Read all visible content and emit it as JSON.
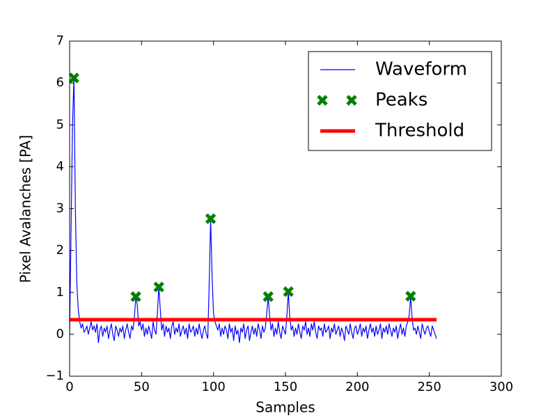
{
  "chart_data": {
    "type": "line",
    "xlabel": "Samples",
    "ylabel": "Pixel Avalanches [PA]",
    "xlim": [
      0,
      300
    ],
    "xticks": [
      0,
      50,
      100,
      150,
      200,
      250,
      300
    ],
    "ylim": [
      -1,
      7
    ],
    "yticks": [
      {
        "value": -1,
        "label": "−1"
      },
      0,
      1,
      2,
      3,
      4,
      5,
      6,
      7
    ],
    "legend": "upper right",
    "series": [
      {
        "name": "Waveform",
        "color": "#0000ff",
        "style": "line",
        "x": [
          0,
          1,
          2,
          3,
          4,
          5,
          6,
          7,
          8,
          9,
          10,
          11,
          12,
          13,
          14,
          15,
          16,
          17,
          18,
          19,
          20,
          21,
          22,
          23,
          24,
          25,
          26,
          27,
          28,
          29,
          30,
          31,
          32,
          33,
          34,
          35,
          36,
          37,
          38,
          39,
          40,
          41,
          42,
          43,
          44,
          45,
          46,
          47,
          48,
          49,
          50,
          51,
          52,
          53,
          54,
          55,
          56,
          57,
          58,
          59,
          60,
          61,
          62,
          63,
          64,
          65,
          66,
          67,
          68,
          69,
          70,
          71,
          72,
          73,
          74,
          75,
          76,
          77,
          78,
          79,
          80,
          81,
          82,
          83,
          84,
          85,
          86,
          87,
          88,
          89,
          90,
          91,
          92,
          93,
          94,
          95,
          96,
          97,
          98,
          99,
          100,
          101,
          102,
          103,
          104,
          105,
          106,
          107,
          108,
          109,
          110,
          111,
          112,
          113,
          114,
          115,
          116,
          117,
          118,
          119,
          120,
          121,
          122,
          123,
          124,
          125,
          126,
          127,
          128,
          129,
          130,
          131,
          132,
          133,
          134,
          135,
          136,
          137,
          138,
          139,
          140,
          141,
          142,
          143,
          144,
          145,
          146,
          147,
          148,
          149,
          150,
          151,
          152,
          153,
          154,
          155,
          156,
          157,
          158,
          159,
          160,
          161,
          162,
          163,
          164,
          165,
          166,
          167,
          168,
          169,
          170,
          171,
          172,
          173,
          174,
          175,
          176,
          177,
          178,
          179,
          180,
          181,
          182,
          183,
          184,
          185,
          186,
          187,
          188,
          189,
          190,
          191,
          192,
          193,
          194,
          195,
          196,
          197,
          198,
          199,
          200,
          201,
          202,
          203,
          204,
          205,
          206,
          207,
          208,
          209,
          210,
          211,
          212,
          213,
          214,
          215,
          216,
          217,
          218,
          219,
          220,
          221,
          222,
          223,
          224,
          225,
          226,
          227,
          228,
          229,
          230,
          231,
          232,
          233,
          234,
          235,
          236,
          237,
          238,
          239,
          240,
          241,
          242,
          243,
          244,
          245,
          246,
          247,
          248,
          249,
          250,
          251,
          252,
          253,
          254,
          255
        ],
        "values": [
          0,
          2.5,
          5.0,
          6.12,
          3.0,
          1.2,
          0.6,
          0.3,
          0.15,
          0.25,
          0.05,
          0.1,
          0.2,
          0.0,
          0.15,
          0.3,
          0.1,
          0.2,
          0.05,
          0.25,
          -0.2,
          0.1,
          0.2,
          -0.05,
          0.15,
          0.05,
          0.2,
          -0.1,
          0.1,
          0.25,
          0.0,
          -0.15,
          0.2,
          0.1,
          -0.05,
          0.15,
          0.05,
          0.2,
          -0.1,
          0.1,
          0.25,
          0.05,
          -0.1,
          0.2,
          0.1,
          0.4,
          0.9,
          0.7,
          0.2,
          0.3,
          0.1,
          0.25,
          -0.05,
          0.15,
          0.0,
          0.2,
          0.05,
          -0.1,
          0.3,
          0.1,
          0.0,
          0.5,
          1.13,
          0.6,
          0.1,
          0.25,
          -0.05,
          0.2,
          0.05,
          0.15,
          -0.1,
          0.2,
          0.3,
          0.0,
          0.15,
          0.05,
          0.25,
          -0.05,
          0.1,
          0.2,
          0.0,
          0.15,
          -0.1,
          0.25,
          0.05,
          0.1,
          0.2,
          -0.05,
          0.15,
          0.0,
          0.25,
          0.05,
          -0.1,
          0.1,
          0.2,
          0.0,
          -0.1,
          1.2,
          2.76,
          1.4,
          0.5,
          0.3,
          0.2,
          0.1,
          0.25,
          -0.05,
          0.15,
          0.0,
          0.2,
          0.1,
          -0.1,
          0.25,
          0.05,
          0.15,
          -0.15,
          0.2,
          0.0,
          0.1,
          -0.2,
          0.15,
          0.05,
          0.25,
          -0.1,
          0.1,
          0.2,
          -0.15,
          0.05,
          0.2,
          0.0,
          0.15,
          -0.05,
          0.25,
          0.1,
          -0.1,
          0.2,
          0.05,
          0.15,
          0.5,
          0.9,
          0.45,
          0.1,
          0.25,
          -0.05,
          0.15,
          0.0,
          0.3,
          0.05,
          -0.1,
          0.2,
          0.1,
          0.0,
          0.45,
          1.02,
          0.4,
          0.1,
          0.2,
          -0.05,
          0.15,
          0.0,
          0.25,
          0.05,
          -0.1,
          0.2,
          0.1,
          0.3,
          0.0,
          0.15,
          -0.05,
          0.25,
          0.1,
          0.3,
          0.05,
          -0.1,
          0.2,
          0.1,
          0.15,
          -0.05,
          0.25,
          0.05,
          0.1,
          0.2,
          -0.1,
          0.15,
          0.05,
          0.25,
          0.0,
          0.1,
          0.2,
          -0.05,
          0.15,
          0.05,
          -0.15,
          0.2,
          0.1,
          0.0,
          0.25,
          0.05,
          -0.1,
          0.15,
          0.2,
          0.0,
          0.1,
          0.25,
          -0.05,
          0.15,
          0.05,
          0.2,
          -0.1,
          0.1,
          0.25,
          0.05,
          0.15,
          -0.05,
          0.2,
          0.0,
          0.1,
          0.25,
          -0.1,
          0.15,
          0.05,
          0.2,
          0.0,
          0.25,
          0.1,
          -0.05,
          0.15,
          0.05,
          0.2,
          -0.1,
          0.1,
          0.25,
          0.0,
          0.15,
          -0.05,
          0.2,
          0.3,
          0.45,
          0.91,
          0.4,
          0.1,
          0.15,
          0.0,
          0.2,
          0.05,
          -0.1,
          0.25,
          0.1,
          0.0,
          0.15,
          0.2,
          0.05,
          -0.05,
          0.2,
          0.1,
          0.0,
          -0.1
        ]
      },
      {
        "name": "Peaks",
        "color": "#008000",
        "style": "marker",
        "x": [
          3,
          46,
          62,
          98,
          138,
          152,
          237
        ],
        "values": [
          6.12,
          0.9,
          1.13,
          2.76,
          0.9,
          1.02,
          0.91
        ]
      },
      {
        "name": "Threshold",
        "color": "#ff0000",
        "style": "thick",
        "x": [
          0,
          255
        ],
        "values": [
          0.35,
          0.35
        ]
      }
    ]
  }
}
